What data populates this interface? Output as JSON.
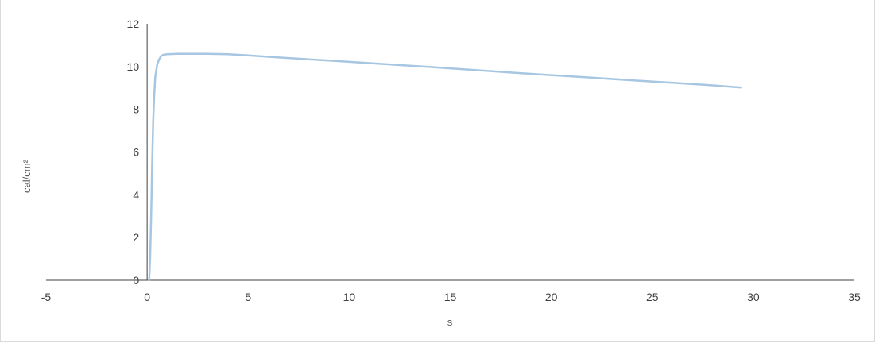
{
  "chart_data": {
    "type": "line",
    "title": "",
    "xlabel": "s",
    "ylabel": "cal/cm²",
    "xlim": [
      -5,
      35
    ],
    "ylim": [
      0,
      12
    ],
    "x_ticks": [
      "-5",
      "0",
      "5",
      "10",
      "15",
      "20",
      "25",
      "30",
      "35"
    ],
    "y_ticks": [
      "0",
      "2",
      "4",
      "6",
      "8",
      "10",
      "12"
    ],
    "grid": false,
    "legend": "none",
    "colors": {
      "series": "#a6c6e2",
      "axis": "#404040"
    },
    "series": [
      {
        "x": [
          0.1,
          0.15,
          0.2,
          0.25,
          0.3,
          0.35,
          0.4,
          0.5,
          0.6,
          0.7,
          0.8,
          1.0,
          1.5,
          2,
          3,
          4,
          5,
          6,
          7,
          8,
          9,
          10,
          12,
          14,
          16,
          18,
          20,
          22,
          24,
          26,
          28,
          29.4
        ],
        "y": [
          0.0,
          1.0,
          3.0,
          5.5,
          7.5,
          8.6,
          9.5,
          10.1,
          10.35,
          10.5,
          10.55,
          10.58,
          10.6,
          10.6,
          10.6,
          10.58,
          10.52,
          10.46,
          10.4,
          10.34,
          10.28,
          10.22,
          10.1,
          9.98,
          9.85,
          9.72,
          9.6,
          9.48,
          9.36,
          9.24,
          9.12,
          9.02
        ]
      }
    ]
  }
}
